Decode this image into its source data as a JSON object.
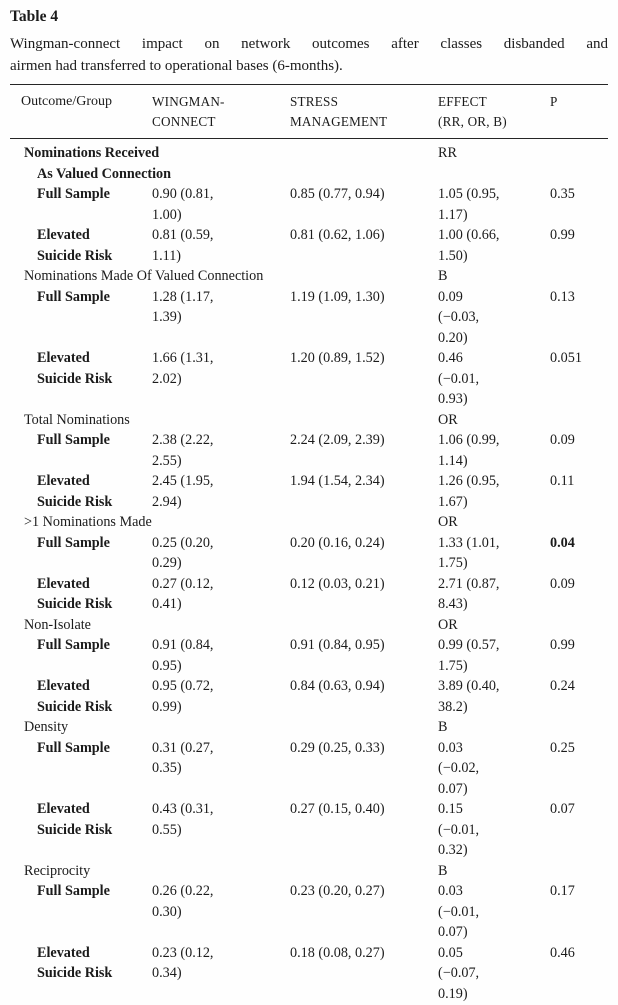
{
  "title": "Table 4",
  "caption": {
    "line1": "Wingman-connect impact on network outcomes after classes disbanded and",
    "line2": "airmen had transferred to operational bases (6-months)."
  },
  "header": {
    "outcome_group": "Outcome/Group",
    "wingman_connect": [
      "WINGMAN-",
      "CONNECT"
    ],
    "stress_management": [
      "STRESS",
      "MANAGEMENT"
    ],
    "effect": [
      "EFFECT",
      "(RR, OR, B)"
    ],
    "p": "P"
  },
  "table": {
    "rows": [
      {
        "type": "section",
        "bold": true,
        "label": [
          "Nominations Received"
        ],
        "effect": [
          "RR"
        ],
        "p": ""
      },
      {
        "type": "sub",
        "bold": true,
        "label": [
          "As Valued Connection"
        ],
        "effect": "",
        "p": ""
      },
      {
        "type": "data",
        "label": [
          "Full Sample"
        ],
        "wingman_connect": [
          "0.90 (0.81,",
          "1.00)"
        ],
        "stress_management": [
          "0.85 (0.77, 0.94)"
        ],
        "effect": [
          "1.05 (0.95,",
          "1.17)"
        ],
        "p": "0.35",
        "p_bold": false
      },
      {
        "type": "data",
        "label": [
          "Elevated",
          "Suicide Risk"
        ],
        "wingman_connect": [
          "0.81 (0.59,",
          "1.11)"
        ],
        "stress_management": [
          "0.81 (0.62, 1.06)"
        ],
        "effect": [
          "1.00 (0.66,",
          "1.50)"
        ],
        "p": "0.99",
        "p_bold": false
      },
      {
        "type": "section",
        "bold": false,
        "label": [
          "Nominations Made Of Valued Connection"
        ],
        "effect": [
          "B"
        ],
        "p": ""
      },
      {
        "type": "data",
        "label": [
          "Full Sample"
        ],
        "wingman_connect": [
          "1.28 (1.17,",
          "1.39)"
        ],
        "stress_management": [
          "1.19 (1.09, 1.30)"
        ],
        "effect": [
          "0.09",
          "(−0.03,",
          "0.20)"
        ],
        "p": "0.13",
        "p_bold": false
      },
      {
        "type": "data",
        "label": [
          "Elevated",
          "Suicide Risk"
        ],
        "wingman_connect": [
          "1.66 (1.31,",
          "2.02)"
        ],
        "stress_management": [
          "1.20 (0.89, 1.52)"
        ],
        "effect": [
          "0.46",
          "(−0.01,",
          "0.93)"
        ],
        "p": "0.051",
        "p_bold": false
      },
      {
        "type": "section",
        "bold": false,
        "label": [
          "Total Nominations"
        ],
        "effect": [
          "OR"
        ],
        "p": ""
      },
      {
        "type": "data",
        "label": [
          "Full Sample"
        ],
        "wingman_connect": [
          "2.38 (2.22,",
          "2.55)"
        ],
        "stress_management": [
          "2.24 (2.09, 2.39)"
        ],
        "effect": [
          "1.06 (0.99,",
          "1.14)"
        ],
        "p": "0.09",
        "p_bold": false
      },
      {
        "type": "data",
        "label": [
          "Elevated",
          "Suicide Risk"
        ],
        "wingman_connect": [
          "2.45 (1.95,",
          "2.94)"
        ],
        "stress_management": [
          "1.94 (1.54, 2.34)"
        ],
        "effect": [
          "1.26 (0.95,",
          "1.67)"
        ],
        "p": "0.11",
        "p_bold": false
      },
      {
        "type": "section",
        "bold": false,
        "label": [
          ">1 Nominations Made"
        ],
        "effect": [
          "OR"
        ],
        "p": ""
      },
      {
        "type": "data",
        "label": [
          "Full Sample"
        ],
        "wingman_connect": [
          "0.25 (0.20,",
          "0.29)"
        ],
        "stress_management": [
          "0.20 (0.16, 0.24)"
        ],
        "effect": [
          "1.33 (1.01,",
          "1.75)"
        ],
        "p": "0.04",
        "p_bold": true
      },
      {
        "type": "data",
        "label": [
          "Elevated",
          "Suicide Risk"
        ],
        "wingman_connect": [
          "0.27 (0.12,",
          "0.41)"
        ],
        "stress_management": [
          "0.12 (0.03, 0.21)"
        ],
        "effect": [
          "2.71 (0.87,",
          "8.43)"
        ],
        "p": "0.09",
        "p_bold": false
      },
      {
        "type": "section",
        "bold": false,
        "label": [
          "Non-Isolate"
        ],
        "effect": [
          "OR"
        ],
        "p": ""
      },
      {
        "type": "data",
        "label": [
          "Full Sample"
        ],
        "wingman_connect": [
          "0.91 (0.84,",
          "0.95)"
        ],
        "stress_management": [
          "0.91 (0.84, 0.95)"
        ],
        "effect": [
          "0.99 (0.57,",
          "1.75)"
        ],
        "p": "0.99",
        "p_bold": false
      },
      {
        "type": "data",
        "label": [
          "Elevated",
          "Suicide Risk"
        ],
        "wingman_connect": [
          "0.95 (0.72,",
          "0.99)"
        ],
        "stress_management": [
          "0.84 (0.63, 0.94)"
        ],
        "effect": [
          "3.89 (0.40,",
          "38.2)"
        ],
        "p": "0.24",
        "p_bold": false
      },
      {
        "type": "section",
        "bold": false,
        "label": [
          "Density"
        ],
        "effect": [
          "B"
        ],
        "p": ""
      },
      {
        "type": "data",
        "label": [
          "Full Sample"
        ],
        "wingman_connect": [
          "0.31 (0.27,",
          "0.35)"
        ],
        "stress_management": [
          "0.29 (0.25, 0.33)"
        ],
        "effect": [
          "0.03",
          "(−0.02,",
          "0.07)"
        ],
        "p": "0.25",
        "p_bold": false
      },
      {
        "type": "data",
        "label": [
          "Elevated",
          "Suicide Risk"
        ],
        "wingman_connect": [
          "0.43 (0.31,",
          "0.55)"
        ],
        "stress_management": [
          "0.27 (0.15, 0.40)"
        ],
        "effect": [
          "0.15",
          "(−0.01,",
          "0.32)"
        ],
        "p": "0.07",
        "p_bold": false
      },
      {
        "type": "section",
        "bold": false,
        "label": [
          "Reciprocity"
        ],
        "effect": [
          "B"
        ],
        "p": ""
      },
      {
        "type": "data",
        "label": [
          "Full Sample"
        ],
        "wingman_connect": [
          "0.26 (0.22,",
          "0.30)"
        ],
        "stress_management": [
          "0.23 (0.20, 0.27)"
        ],
        "effect": [
          "0.03",
          "(−0.01,",
          "0.07)"
        ],
        "p": "0.17",
        "p_bold": false
      },
      {
        "type": "data",
        "label": [
          "Elevated",
          "Suicide Risk"
        ],
        "wingman_connect": [
          "0.23 (0.12,",
          "0.34)"
        ],
        "stress_management": [
          "0.18 (0.08, 0.27)"
        ],
        "effect": [
          "0.05",
          "(−0.07,",
          "0.19)"
        ],
        "p": "0.46",
        "p_bold": false
      }
    ]
  }
}
